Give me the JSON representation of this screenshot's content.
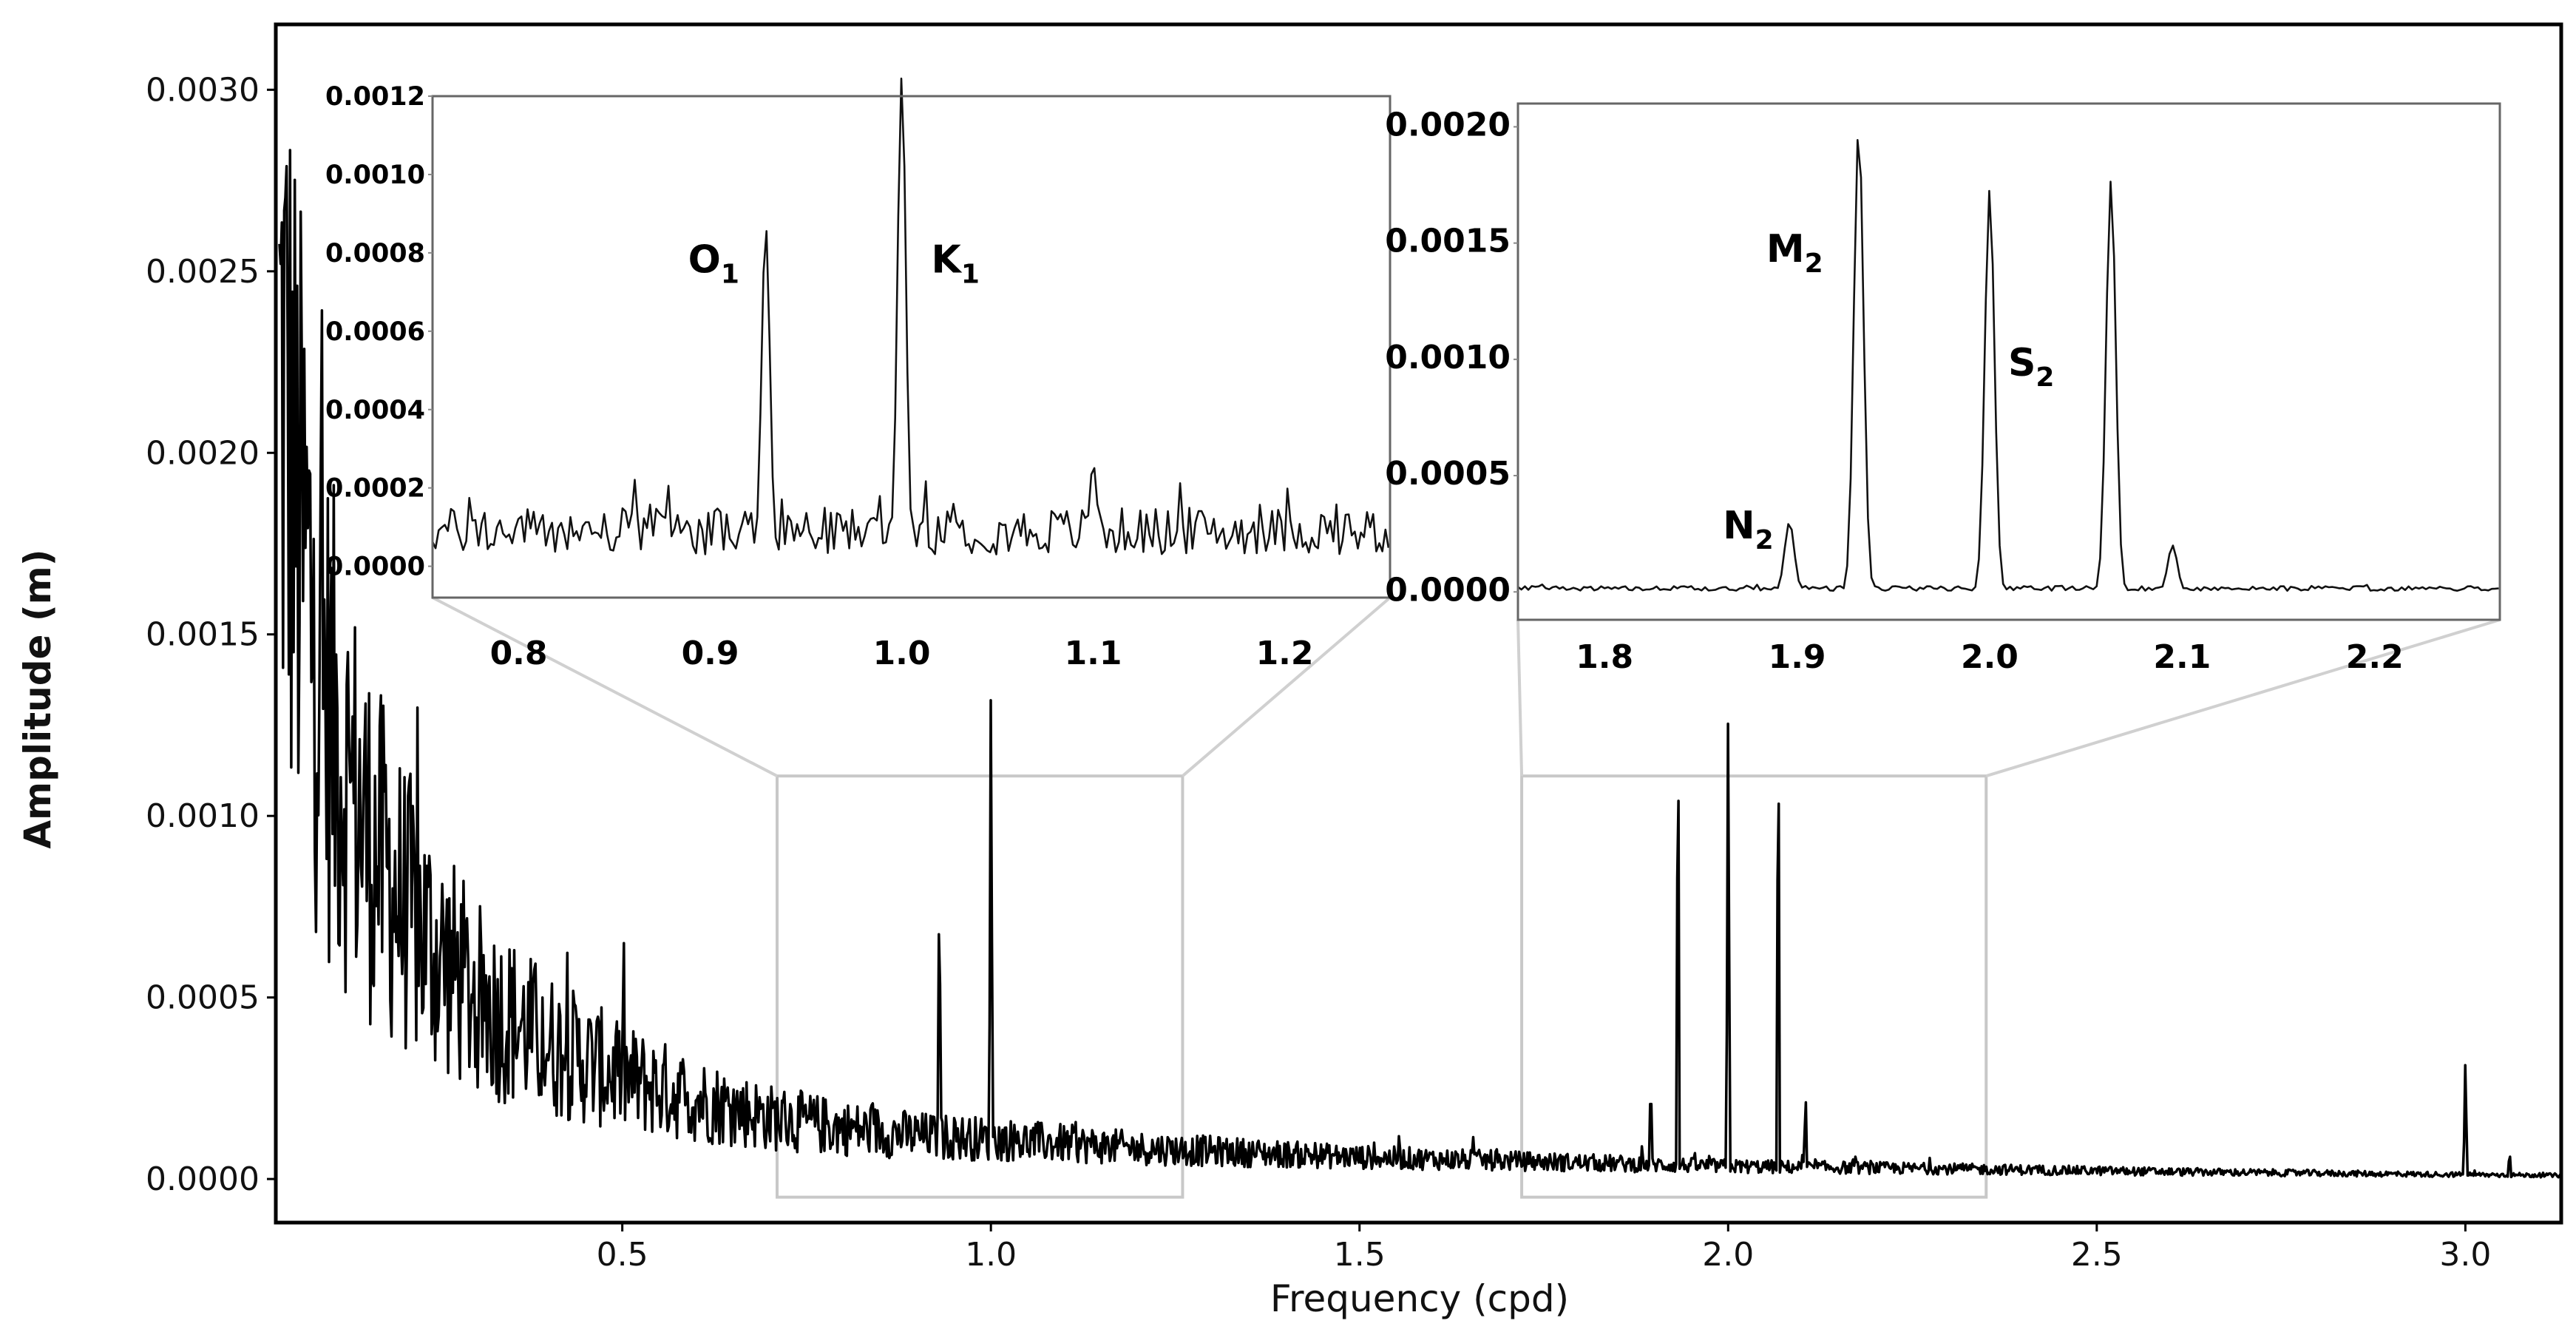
{
  "colors": {
    "line": "#000000",
    "frame": "#000000",
    "zoom_box": "#c8c8c8",
    "inset_frame": "#666666"
  },
  "chart_data": [
    {
      "id": "main",
      "type": "line",
      "title": "",
      "xlabel": "Frequency (cpd)",
      "ylabel": "Amplitude  (m)",
      "xlim": [
        0.03,
        3.13
      ],
      "ylim": [
        -0.00012,
        0.00318
      ],
      "xticks": [
        0.5,
        1.0,
        1.5,
        2.0,
        2.5,
        3.0
      ],
      "xtick_labels": [
        "0.5",
        "1.0",
        "1.5",
        "2.0",
        "2.5",
        "3.0"
      ],
      "yticks": [
        0.0,
        0.0005,
        0.001,
        0.0015,
        0.002,
        0.0025,
        0.003
      ],
      "ytick_labels": [
        "0.0000",
        "0.0005",
        "0.0010",
        "0.0015",
        "0.0020",
        "0.0025",
        "0.0030"
      ],
      "grid": false,
      "background_trend": {
        "x": [
          0.04,
          0.06,
          0.08,
          0.1,
          0.13,
          0.16,
          0.2,
          0.25,
          0.3,
          0.4,
          0.5,
          0.6,
          0.7,
          0.8,
          0.9,
          1.0,
          1.2,
          1.5,
          1.8,
          2.0,
          2.3,
          2.6,
          3.0,
          3.12
        ],
        "y": [
          0.0022,
          0.0018,
          0.00155,
          0.0013,
          0.00108,
          0.00092,
          0.00076,
          0.00062,
          0.0005,
          0.00037,
          0.00028,
          0.00022,
          0.00017,
          0.00014,
          0.00012,
          0.00011,
          8.5e-05,
          6e-05,
          4.5e-05,
          3.5e-05,
          2.8e-05,
          2e-05,
          1.2e-05,
          1e-05
        ]
      },
      "peaks": [
        {
          "x": 0.93,
          "y": 0.00088
        },
        {
          "x": 1.0,
          "y": 0.00143
        },
        {
          "x": 1.895,
          "y": 0.0003
        },
        {
          "x": 1.932,
          "y": 0.00136
        },
        {
          "x": 2.0,
          "y": 0.00136
        },
        {
          "x": 2.068,
          "y": 0.00135
        },
        {
          "x": 2.105,
          "y": 0.00025
        },
        {
          "x": 3.0,
          "y": 0.00034
        },
        {
          "x": 3.06,
          "y": 8e-05
        }
      ],
      "zoom_regions": [
        {
          "x": [
            0.71,
            1.26
          ],
          "y": [
            -5e-05,
            0.00111
          ]
        },
        {
          "x": [
            1.72,
            2.35
          ],
          "y": [
            -5e-05,
            0.00111
          ]
        }
      ]
    },
    {
      "id": "inset_diurnal",
      "type": "line",
      "title": "",
      "xlim": [
        0.755,
        1.255
      ],
      "ylim": [
        -8e-05,
        0.0012
      ],
      "xticks": [
        0.8,
        0.9,
        1.0,
        1.1,
        1.2
      ],
      "xtick_labels": [
        "0.8",
        "0.9",
        "1.0",
        "1.1",
        "1.2"
      ],
      "yticks": [
        0.0,
        0.0002,
        0.0004,
        0.0006,
        0.0008,
        0.001,
        0.0012
      ],
      "ytick_labels": [
        "0.0000",
        "0.0002",
        "0.0004",
        "0.0006",
        "0.0008",
        "0.0010",
        "0.0012"
      ],
      "noise_level": 0.00012,
      "peaks": [
        {
          "x": 0.929,
          "y": 0.00087,
          "label": "O",
          "label_sub": "1"
        },
        {
          "x": 1.0,
          "y": 0.00125,
          "label": "K",
          "label_sub": "1"
        },
        {
          "x": 1.1,
          "y": 0.00026
        }
      ]
    },
    {
      "id": "inset_semidiurnal",
      "type": "line",
      "title": "",
      "xlim": [
        1.755,
        2.265
      ],
      "ylim": [
        -0.00012,
        0.0021
      ],
      "xticks": [
        1.8,
        1.9,
        2.0,
        2.1,
        2.2
      ],
      "xtick_labels": [
        "1.8",
        "1.9",
        "2.0",
        "2.1",
        "2.2"
      ],
      "yticks": [
        0.0,
        0.0005,
        0.001,
        0.0015,
        0.002
      ],
      "ytick_labels": [
        "0.0000",
        "0.0005",
        "0.0010",
        "0.0015",
        "0.0020"
      ],
      "noise_level": 2e-05,
      "peaks": [
        {
          "x": 1.896,
          "y": 0.0003,
          "label": "N",
          "label_sub": "2"
        },
        {
          "x": 1.932,
          "y": 0.002,
          "label": "M",
          "label_sub": "2"
        },
        {
          "x": 2.0,
          "y": 0.00173,
          "label": "S",
          "label_sub": "2"
        },
        {
          "x": 2.063,
          "y": 0.00177
        },
        {
          "x": 2.095,
          "y": 0.0002
        }
      ]
    }
  ]
}
